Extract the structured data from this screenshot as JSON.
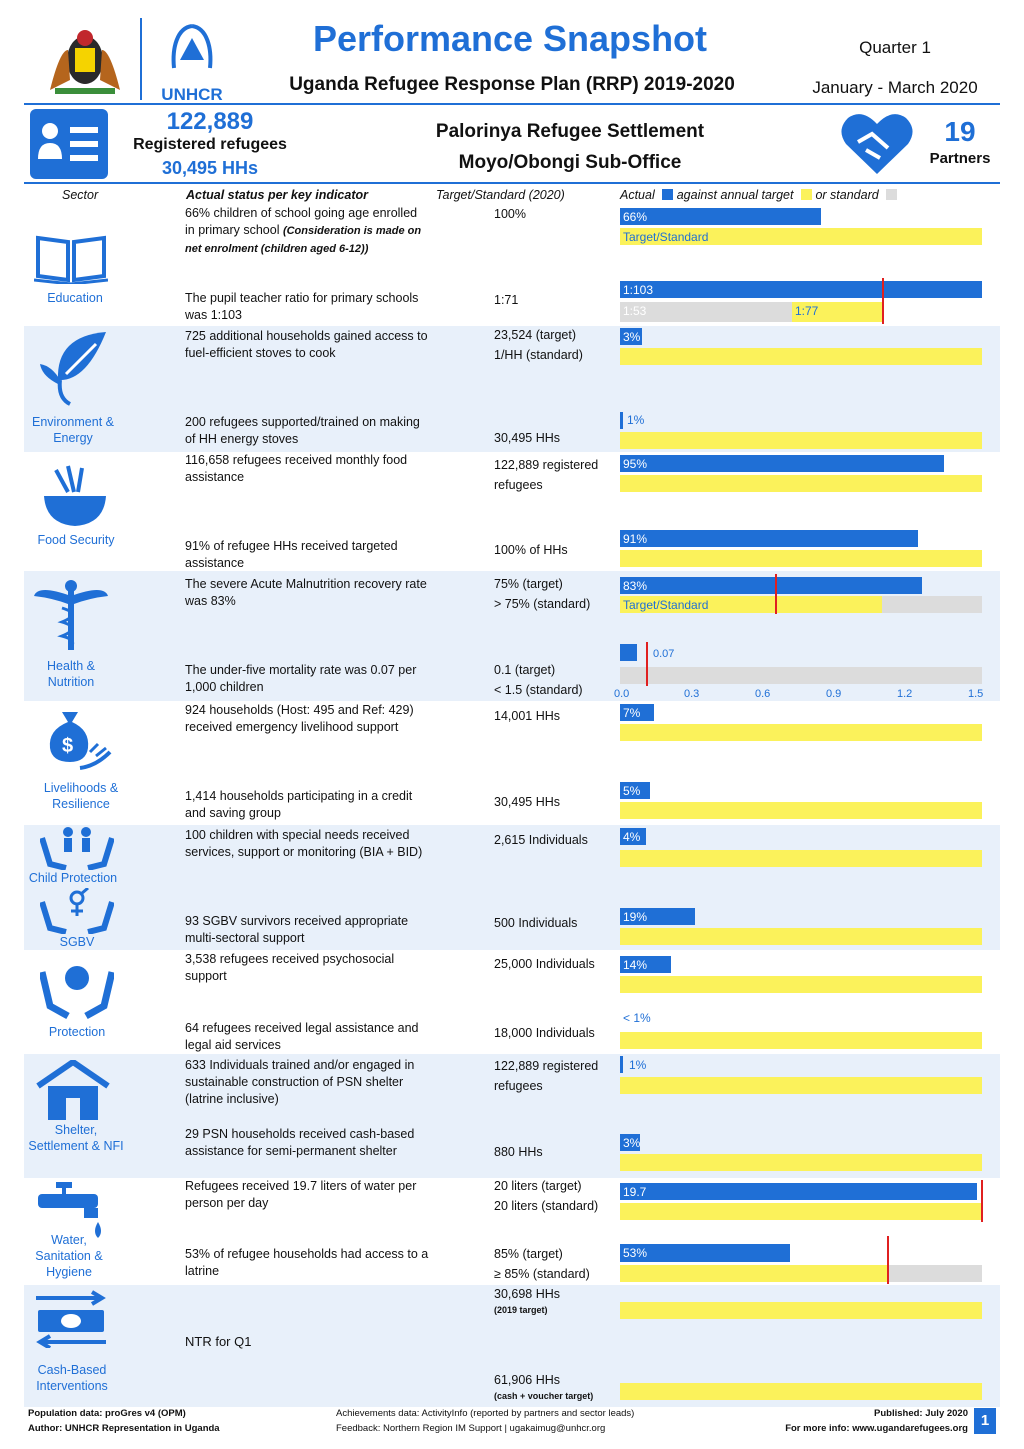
{
  "header": {
    "title": "Performance Snapshot",
    "subtitle": "Uganda Refugee Response Plan (RRP) 2019-2020",
    "quarter": "Quarter 1",
    "period": "January - March 2020",
    "org": "UNHCR"
  },
  "summary": {
    "registered_num": "122,889",
    "registered_label": "Registered refugees",
    "households": "30,495 HHs",
    "settlement": "Palorinya Refugee Settlement",
    "office": "Moyo/Obongi Sub-Office",
    "partners_num": "19",
    "partners_label": "Partners"
  },
  "columns": {
    "sector": "Sector",
    "indicator": "Actual status per key indicator",
    "target": "Target/Standard (2020)",
    "actual": "Actual",
    "against": "against annual target",
    "or_standard": "or standard"
  },
  "sectors": {
    "education": "Education",
    "environment": "Environment & Energy",
    "food": "Food Security",
    "health": "Health & Nutrition",
    "livelihoods": "Livelihoods & Resilience",
    "child": "Child Protection",
    "sgbv": "SGBV",
    "protection": "Protection",
    "shelter": "Shelter, Settlement & NFI",
    "wash": "Water, Sanitation & Hygiene",
    "cbi": "Cash-Based Interventions"
  },
  "rows": {
    "edu1": {
      "text": "66% children of school going age enrolled in primary school ",
      "note": "(Consideration is made on net enrolment (children aged 6-12))",
      "target": "100%",
      "bar": "66%",
      "value": 0.66,
      "std": "Target/Standard"
    },
    "edu2": {
      "text": "The pupil teacher ratio for primary schools was 1:103",
      "target": "1:71",
      "actual": "1:103",
      "standard": "1:53",
      "target_ratio": "1:77"
    },
    "env1": {
      "text": "725 additional households gained access to fuel-efficient stoves to cook",
      "target1": "23,524 (target)",
      "target2": "1/HH (standard)",
      "bar": "3%",
      "value": 0.03
    },
    "env2": {
      "text": "200 refugees supported/trained on making of HH energy stoves",
      "target": "30,495 HHs",
      "bar": "1%",
      "value": 0.01
    },
    "food1": {
      "text": "116,658 refugees received monthly food assistance",
      "target": "122,889 registered refugees",
      "bar": "95%",
      "value": 0.95
    },
    "food2": {
      "text": "91% of refugee HHs received targeted assistance",
      "target": "100% of HHs",
      "bar": "91%",
      "value": 0.91
    },
    "health1": {
      "text": "The severe Acute Malnutrition recovery rate was 83%",
      "target1": "75% (target)",
      "target2": "> 75% (standard)",
      "bar": "83%",
      "value": 0.83,
      "std": "Target/Standard"
    },
    "health2": {
      "text": "The under-five mortality rate was 0.07 per 1,000 children",
      "target1": "0.1 (target)",
      "target2": "< 1.5 (standard)",
      "bar": "0.07",
      "value": 0.07,
      "ticks": [
        "0.0",
        "0.3",
        "0.6",
        "0.9",
        "1.2",
        "1.5"
      ]
    },
    "liv1": {
      "text": "924 households (Host: 495 and Ref: 429) received emergency livelihood support",
      "target": "14,001 HHs",
      "bar": "7%",
      "value": 0.07
    },
    "liv2": {
      "text": "1,414 households participating in a credit and saving group",
      "target": "30,495 HHs",
      "bar": "5%",
      "value": 0.05
    },
    "cp1": {
      "text": "100 children with special needs received services, support or monitoring (BIA + BID)",
      "target": "2,615 Individuals",
      "bar": "4%",
      "value": 0.04
    },
    "sgbv1": {
      "text": "93 SGBV survivors received appropriate multi-sectoral support",
      "target": "500 Individuals",
      "bar": "19%",
      "value": 0.19
    },
    "prot1": {
      "text": "3,538 refugees received psychosocial support",
      "target": "25,000 Individuals",
      "bar": "14%",
      "value": 0.14
    },
    "prot2": {
      "text": "64 refugees received legal assistance and legal aid services",
      "target": "18,000 Individuals",
      "bar": "< 1%",
      "value": 0.0
    },
    "shel1": {
      "text": "633 Individuals trained and/or engaged in sustainable construction of PSN shelter (latrine inclusive)",
      "target": "122,889 registered refugees",
      "bar": "1%",
      "value": 0.01
    },
    "shel2": {
      "text": "29 PSN households received cash-based assistance for semi-permanent shelter",
      "target": "880 HHs",
      "bar": "3%",
      "value": 0.03
    },
    "wash1": {
      "text": "Refugees received 19.7 liters of water per person per day",
      "target1": "20 liters (target)",
      "target2": "20 liters (standard)",
      "bar": "19.7",
      "value": 0.985
    },
    "wash2": {
      "text": "53% of refugee households had access to a latrine",
      "target1": "85% (target)",
      "target2": "≥ 85% (standard)",
      "bar": "53%",
      "value": 0.53
    },
    "cbi": {
      "text": "NTR for Q1",
      "target1": "30,698 HHs",
      "target1_note": "(2019 target)",
      "target2": "61,906 HHs",
      "target2_note": "(cash + voucher target)"
    }
  },
  "footer": {
    "pop": "Population data: proGres v4 (OPM)",
    "author": "Author: UNHCR Representation in Uganda",
    "achieve": "Achievements data: ActivityInfo (reported by partners and sector leads)",
    "feedback": "Feedback: Northern Region IM Support | ugakaimug@unhcr.org",
    "published": "Published: July 2020",
    "more": "For more info: www.ugandarefugees.org",
    "page": "1"
  },
  "colors": {
    "accent": "#1f6fd6",
    "bar": "#1f6fd6",
    "target": "#fbf25b",
    "standard": "#dcdcdc",
    "marker": "#e02020"
  }
}
